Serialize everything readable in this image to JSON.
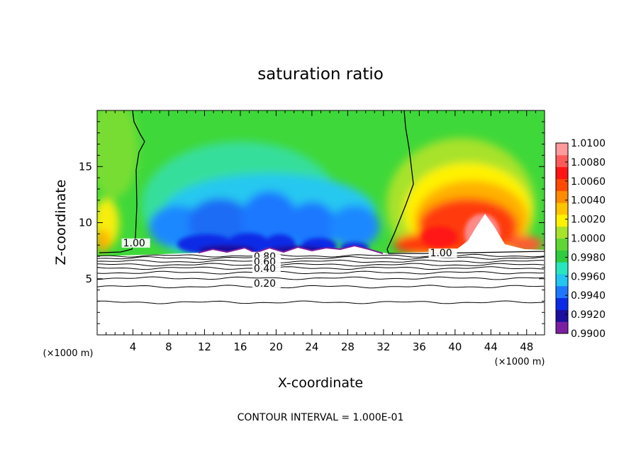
{
  "chart_data": {
    "type": "heatmap",
    "title": "saturation ratio",
    "xlabel": "X-coordinate",
    "ylabel": "Z-coordinate",
    "x_unit": "(×1000 m)",
    "z_unit": "(×1000 m)",
    "xlim": [
      0,
      50
    ],
    "ylim": [
      0,
      20
    ],
    "x_ticks": [
      4,
      8,
      12,
      16,
      20,
      24,
      28,
      32,
      36,
      40,
      44,
      48
    ],
    "y_ticks": [
      5,
      10,
      15
    ],
    "contour_labels": [
      {
        "text": "1.00",
        "x": 2.9,
        "z": 7.9
      },
      {
        "text": "1.00",
        "x": 37.2,
        "z": 7.0
      },
      {
        "text": "0.80",
        "x": 17.5,
        "z": 6.7
      },
      {
        "text": "0.60",
        "x": 17.5,
        "z": 6.2
      },
      {
        "text": "0.40",
        "x": 17.5,
        "z": 5.6
      },
      {
        "text": "0.20",
        "x": 17.5,
        "z": 4.3
      }
    ],
    "lower_contours": [
      {
        "level": 0.9,
        "z": 7.05
      },
      {
        "level": 0.8,
        "z": 6.85
      },
      {
        "level": 0.7,
        "z": 6.55
      },
      {
        "level": 0.6,
        "z": 6.25
      },
      {
        "level": 0.5,
        "z": 5.95
      },
      {
        "level": 0.4,
        "z": 5.55
      },
      {
        "level": 0.3,
        "z": 5.05
      },
      {
        "level": 0.2,
        "z": 4.3
      },
      {
        "level": 0.1,
        "z": 2.9
      }
    ],
    "colorbar": {
      "min": 0.99,
      "max": 1.01,
      "labels": [
        "1.0100",
        "1.0080",
        "1.0060",
        "1.0040",
        "1.0020",
        "1.0000",
        "0.9980",
        "0.9960",
        "0.9940",
        "0.9920",
        "0.9900"
      ],
      "colors": [
        "#7b1fa2",
        "#1a0f9e",
        "#0a2be6",
        "#1e78ff",
        "#22c6f0",
        "#28e6be",
        "#2fcc3e",
        "#60d634",
        "#a8e22a",
        "#fff200",
        "#ffc400",
        "#ff8c00",
        "#ff4a00",
        "#ff1414",
        "#ff5a5a",
        "#ff9a9a"
      ]
    },
    "footer": "CONTOUR INTERVAL = 1.000E-01"
  }
}
